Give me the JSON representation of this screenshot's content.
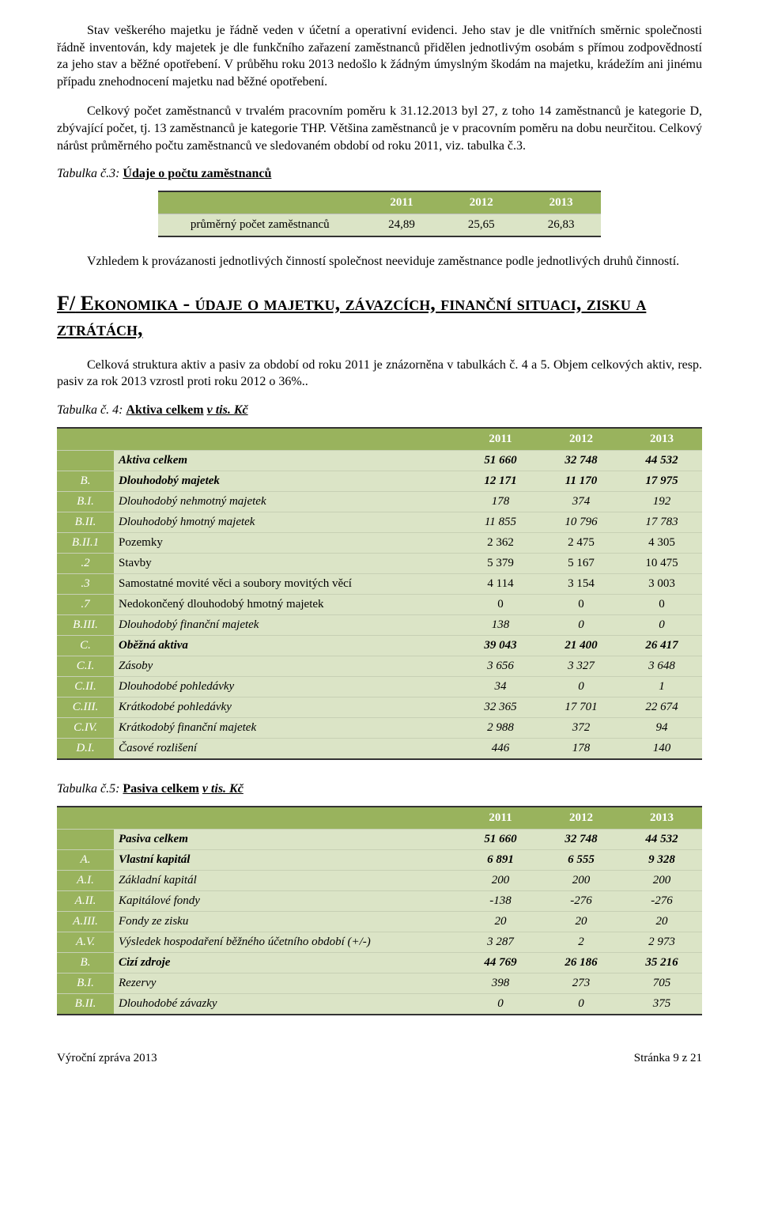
{
  "palette": {
    "header_bg": "#99b35d",
    "header_fg": "#ffffff",
    "cell_bg": "#dbe4c6",
    "rule_dark": "#333333",
    "rule_light": "#c7d0b4",
    "page_bg": "#ffffff",
    "text": "#000000"
  },
  "typography": {
    "body_family": "Times New Roman",
    "body_size_pt": 12,
    "heading_big_pt": 20
  },
  "para1": "Stav veškerého majetku je řádně veden v účetní a operativní evidenci. Jeho stav je dle vnitřních směrnic společnosti řádně inventován, kdy majetek je dle funkčního zařazení zaměstnanců přidělen jednotlivým osobám s přímou zodpovědností za jeho stav a běžné opotřebení.  V průběhu roku 2013 nedošlo k žádným úmyslným škodám na majetku, krádežím ani jinému případu znehodnocení majetku nad běžné opotřebení.",
  "para2": "Celkový počet zaměstnanců v trvalém pracovním poměru k 31.12.2013 byl 27, z toho 14 zaměstnanců je kategorie D, zbývající počet, tj. 13 zaměstnanců je kategorie THP. Většina zaměstnanců je v pracovním poměru na dobu neurčitou. Celkový nárůst průměrného počtu zaměstnanců ve sledovaném období od roku 2011, viz. tabulka č.3.",
  "t3": {
    "prefix": "Tabulka č.3:",
    "title": "Údaje o počtu zaměstnanců",
    "years": [
      "2011",
      "2012",
      "2013"
    ],
    "row_label": "průměrný počet zaměstnanců",
    "values": [
      "24,89",
      "25,65",
      "26,83"
    ]
  },
  "para3": "Vzhledem k provázanosti jednotlivých činností společnost neeviduje zaměstnance podle jednotlivých druhů činností.",
  "sectionF": {
    "lead": "F/",
    "rest_caps": " Ekonomika  -  údaje  o  majetku,  závazcích,  finanční situaci, zisku a ztrátách,"
  },
  "para4": "Celková struktura aktiv a pasiv za období od roku 2011 je znázorněna v tabulkách č. 4 a 5. Objem celkových aktiv, resp. pasiv za rok 2013 vzrostl proti roku 2012 o 36%..",
  "t4": {
    "prefix": "Tabulka č. 4:",
    "title": "Aktiva celkem",
    "suffix": " v tis. Kč",
    "years": [
      "2011",
      "2012",
      "2013"
    ],
    "rows": [
      {
        "code": "",
        "label": "Aktiva celkem",
        "v": [
          "51 660",
          "32 748",
          "44 532"
        ],
        "style": "bold"
      },
      {
        "code": "B.",
        "label": "Dlouhodobý majetek",
        "v": [
          "12 171",
          "11 170",
          "17 975"
        ],
        "style": "bold"
      },
      {
        "code": "B.I.",
        "label": "Dlouhodobý nehmotný majetek",
        "v": [
          "178",
          "374",
          "192"
        ],
        "style": "ital"
      },
      {
        "code": "B.II.",
        "label": "Dlouhodobý hmotný majetek",
        "v": [
          "11 855",
          "10 796",
          "17 783"
        ],
        "style": "ital"
      },
      {
        "code": "B.II.1",
        "label": "Pozemky",
        "v": [
          "2 362",
          "2 475",
          "4 305"
        ],
        "style": ""
      },
      {
        "code": ".2",
        "label": "Stavby",
        "v": [
          "5 379",
          "5 167",
          "10 475"
        ],
        "style": ""
      },
      {
        "code": ".3",
        "label": "Samostatné movité věci a soubory movitých věcí",
        "v": [
          "4 114",
          "3 154",
          "3 003"
        ],
        "style": ""
      },
      {
        "code": ".7",
        "label": "Nedokončený dlouhodobý hmotný majetek",
        "v": [
          "0",
          "0",
          "0"
        ],
        "style": ""
      },
      {
        "code": "B.III.",
        "label": "Dlouhodobý finanční majetek",
        "v": [
          "138",
          "0",
          "0"
        ],
        "style": "ital"
      },
      {
        "code": "C.",
        "label": "Oběžná aktiva",
        "v": [
          "39 043",
          "21 400",
          "26 417"
        ],
        "style": "bold"
      },
      {
        "code": "C.I.",
        "label": "Zásoby",
        "v": [
          "3 656",
          "3 327",
          "3 648"
        ],
        "style": "ital"
      },
      {
        "code": "C.II.",
        "label": "Dlouhodobé pohledávky",
        "v": [
          "34",
          "0",
          "1"
        ],
        "style": "ital"
      },
      {
        "code": "C.III.",
        "label": "Krátkodobé pohledávky",
        "v": [
          "32 365",
          "17 701",
          "22 674"
        ],
        "style": "ital"
      },
      {
        "code": "C.IV.",
        "label": "Krátkodobý finanční majetek",
        "v": [
          "2 988",
          "372",
          "94"
        ],
        "style": "ital"
      },
      {
        "code": "D.I.",
        "label": "Časové rozlišení",
        "v": [
          "446",
          "178",
          "140"
        ],
        "style": "ital"
      }
    ]
  },
  "t5": {
    "prefix": "Tabulka č.5:",
    "title": "Pasiva celkem",
    "suffix": " v tis. Kč",
    "years": [
      "2011",
      "2012",
      "2013"
    ],
    "rows": [
      {
        "code": "",
        "label": "Pasiva celkem",
        "v": [
          "51 660",
          "32 748",
          "44 532"
        ],
        "style": "bold"
      },
      {
        "code": "A.",
        "label": "Vlastní kapitál",
        "v": [
          "6 891",
          "6 555",
          "9 328"
        ],
        "style": "bold"
      },
      {
        "code": "A.I.",
        "label": "Základní kapitál",
        "v": [
          "200",
          "200",
          "200"
        ],
        "style": "ital"
      },
      {
        "code": "A.II.",
        "label": "Kapitálové fondy",
        "v": [
          "-138",
          "-276",
          "-276"
        ],
        "style": "ital"
      },
      {
        "code": "A.III.",
        "label": "Fondy ze zisku",
        "v": [
          "20",
          "20",
          "20"
        ],
        "style": "ital"
      },
      {
        "code": "A.V.",
        "label": "Výsledek hospodaření běžného účetního období (+/-)",
        "v": [
          "3 287",
          "2",
          "2 973"
        ],
        "style": "ital"
      },
      {
        "code": "B.",
        "label": "Cizí zdroje",
        "v": [
          "44 769",
          "26 186",
          "35 216"
        ],
        "style": "bold"
      },
      {
        "code": "B.I.",
        "label": "Rezervy",
        "v": [
          "398",
          "273",
          "705"
        ],
        "style": "ital"
      },
      {
        "code": "B.II.",
        "label": "Dlouhodobé závazky",
        "v": [
          "0",
          "0",
          "375"
        ],
        "style": "ital"
      }
    ]
  },
  "footer": {
    "left": "Výroční zpráva 2013",
    "right": "Stránka 9 z 21"
  }
}
